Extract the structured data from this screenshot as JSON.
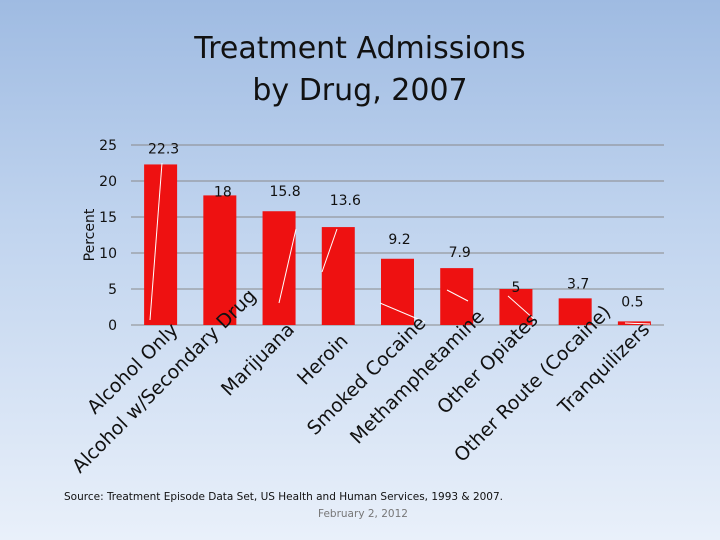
{
  "chart_data": {
    "type": "bar",
    "title": "Treatment Admissions by Drug, 2007",
    "title_lines": [
      "Treatment Admissions",
      "by Drug, 2007"
    ],
    "xlabel": "",
    "ylabel": "Percent",
    "ylim": [
      0,
      25
    ],
    "yticks": [
      0,
      5,
      10,
      15,
      20,
      25
    ],
    "grid": true,
    "legend": "none",
    "categories": [
      "Alcohol Only",
      "Alcohol w/Secondary Drug",
      "Marijuana",
      "Heroin",
      "Smoked Cocaine",
      "Methamphetamine",
      "Other Opiates",
      "Other Route (Cocaine)",
      "Tranquilizers"
    ],
    "values": [
      22.3,
      18,
      15.8,
      13.6,
      9.2,
      7.9,
      5,
      3.7,
      0.5
    ],
    "value_labels": [
      "22.3",
      "18",
      "15.8",
      "13.6",
      "9.2",
      "7.9",
      "5",
      "3.7",
      "0.5"
    ],
    "bar_color": "#ee1111"
  },
  "footer": {
    "source": "Source: Treatment Episode Data Set, US Health and Human Services, 1993 & 2007.",
    "date": "February 2, 2012"
  }
}
